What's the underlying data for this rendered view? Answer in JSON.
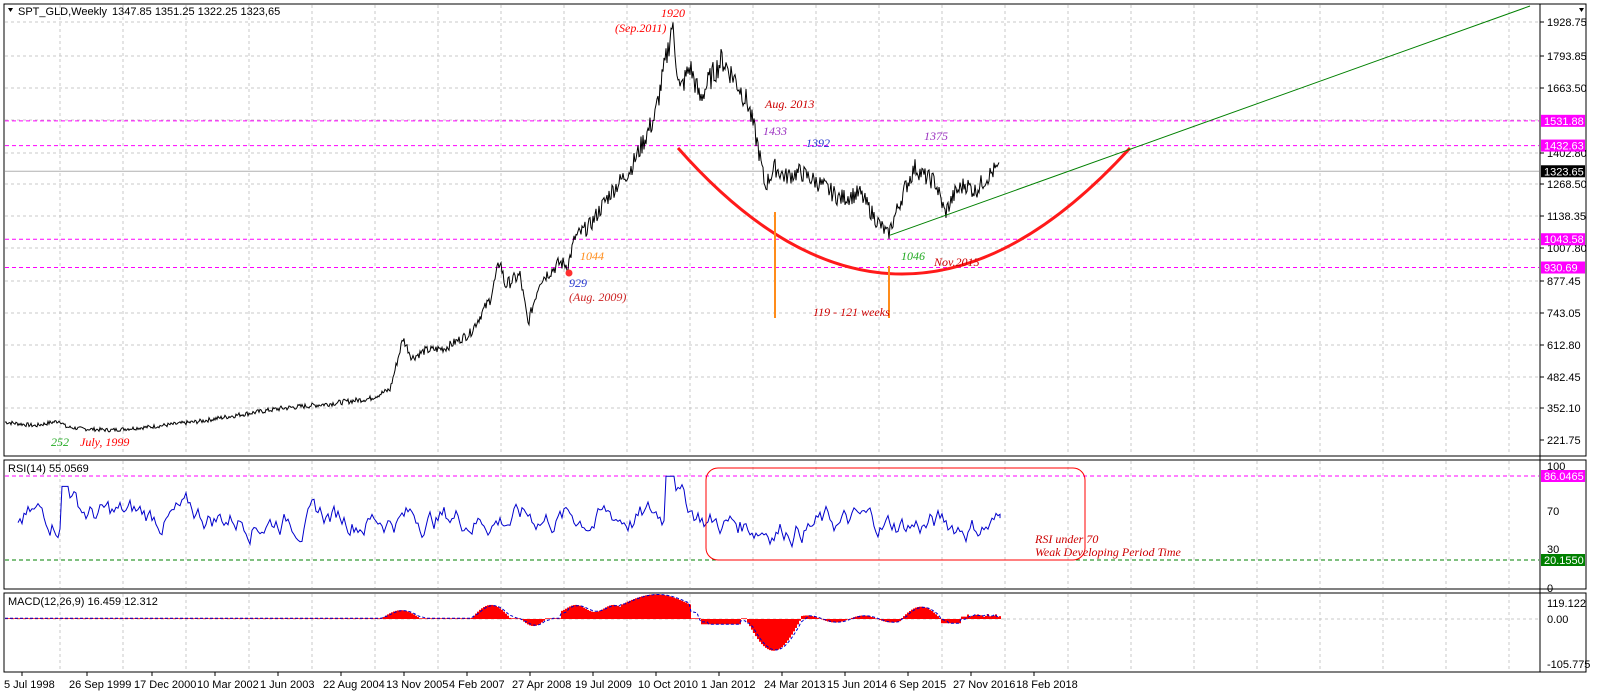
{
  "panes": {
    "main": {
      "title": "SPT_GLD,Weekly",
      "ohlc": "1347.85 1351.25 1322.25 1323,65",
      "y_ticks": [
        "1928.75",
        "1793.85",
        "1663.50",
        "1402.80",
        "1268.50",
        "1138.35",
        "1007.80",
        "877.45",
        "743.05",
        "612.80",
        "482.45",
        "352.10",
        "221.75"
      ],
      "price_boxes": [
        {
          "text": "1531.88",
          "color": "#ff00ff"
        },
        {
          "text": "1432.63",
          "color": "#ff00ff"
        },
        {
          "text": "1323.65",
          "color": "#000000"
        },
        {
          "text": "1043.58",
          "color": "#ff00ff"
        },
        {
          "text": "930.69",
          "color": "#ff00ff"
        }
      ]
    },
    "rsi": {
      "title": "RSI(14) 55.0569",
      "y_ticks": [
        "100",
        "70",
        "30",
        "0"
      ],
      "levels": [
        {
          "text": "86.0465",
          "color": "#ff00ff"
        },
        {
          "text": "20.1550",
          "color": "#008000"
        }
      ],
      "note_line1": "RSI under 70",
      "note_line2": "Weak Developing Period Time"
    },
    "macd": {
      "title": "MACD(12,26,9) 16.459 12.312",
      "y_ticks": [
        "119.122",
        "0.00",
        "-105.775"
      ]
    }
  },
  "annotations": {
    "low_1999_value": "252",
    "low_1999_date": "July, 1999",
    "aug2009_value": "929",
    "aug2009_date": "(Aug. 2009)",
    "level_1044": "1044",
    "peak_value": "1920",
    "peak_date": "(Sep.2011)",
    "aug2013": "Aug. 2013",
    "value_1433": "1433",
    "value_1392": "1392",
    "value_1375": "1375",
    "value_1046": "1046",
    "nov2015": "Nov.2015",
    "weeks": "119 - 121 weeks"
  },
  "x_axis": [
    "5 Jul 1998",
    "26 Sep 1999",
    "17 Dec 2000",
    "10 Mar 2002",
    "1 Jun 2003",
    "22 Aug 2004",
    "13 Nov 2005",
    "4 Feb 2007",
    "27 Apr 2008",
    "19 Jul 2009",
    "10 Oct 2010",
    "1 Jan 2012",
    "24 Mar 2013",
    "15 Jun 2014",
    "6 Sep 2015",
    "27 Nov 2016",
    "18 Feb 2018"
  ],
  "chart_data": {
    "type": "line",
    "title": "SPT_GLD,Weekly",
    "ylim": [
      221.75,
      1980
    ],
    "series": [
      {
        "name": "SPT_GLD,Weekly",
        "x": [
          "5 Jul 1998",
          "26 Sep 1999",
          "17 Dec 2000",
          "10 Mar 2002",
          "1 Jun 2003",
          "22 Aug 2004",
          "13 Nov 2005",
          "4 Feb 2007",
          "27 Apr 2008",
          "19 Jul 2009",
          "10 Oct 2010",
          "Sep 2011",
          "1 Jan 2012",
          "24 Mar 2013",
          "15 Jun 2014",
          "6 Sep 2015",
          "27 Nov 2016",
          "18 Feb 2018"
        ],
        "values": [
          295,
          275,
          268,
          300,
          365,
          400,
          470,
          650,
          900,
          950,
          1320,
          1920,
          1620,
          1600,
          1300,
          1110,
          1200,
          1323.65
        ]
      }
    ],
    "rsi": {
      "name": "RSI(14)",
      "ylim": [
        0,
        100
      ],
      "current": 55.0569,
      "levels": [
        86.0465,
        20.155,
        70,
        30
      ]
    },
    "macd": {
      "name": "MACD(12,26,9)",
      "main": 16.459,
      "signal": 12.312,
      "ylim": [
        -105.775,
        119.122
      ]
    }
  }
}
